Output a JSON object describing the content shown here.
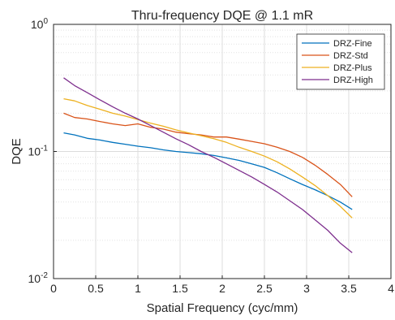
{
  "chart_data": {
    "type": "line",
    "title": "Thru-frequency DQE @ 1.1 mR",
    "xlabel": "Spatial Frequency (cyc/mm)",
    "ylabel": "DQE",
    "xlim": [
      0,
      4
    ],
    "ylim": [
      0.01,
      1
    ],
    "yscale": "log",
    "grid": true,
    "legend_location": "top-right",
    "x_ticks": [
      0,
      0.5,
      1,
      1.5,
      2,
      2.5,
      3,
      3.5,
      4
    ],
    "x_tick_labels": [
      "0",
      "0.5",
      "1",
      "1.5",
      "2",
      "2.5",
      "3",
      "3.5",
      "4"
    ],
    "y_ticks": [
      {
        "value": 0.01,
        "base": "10",
        "exp": "-2"
      },
      {
        "value": 0.1,
        "base": "10",
        "exp": "-1"
      },
      {
        "value": 1,
        "base": "10",
        "exp": "0"
      }
    ],
    "series": [
      {
        "name": "DRZ-Fine",
        "color": "#0072BD",
        "x": [
          0.12,
          0.25,
          0.4,
          0.55,
          0.7,
          0.85,
          1.0,
          1.15,
          1.3,
          1.45,
          1.6,
          1.75,
          1.9,
          2.05,
          2.2,
          2.35,
          2.5,
          2.65,
          2.8,
          2.95,
          3.1,
          3.25,
          3.4,
          3.54
        ],
        "y": [
          0.14,
          0.135,
          0.127,
          0.123,
          0.118,
          0.114,
          0.11,
          0.107,
          0.103,
          0.1,
          0.098,
          0.096,
          0.093,
          0.089,
          0.085,
          0.08,
          0.075,
          0.068,
          0.061,
          0.055,
          0.05,
          0.045,
          0.04,
          0.035
        ]
      },
      {
        "name": "DRZ-Std",
        "color": "#D95319",
        "x": [
          0.12,
          0.25,
          0.4,
          0.55,
          0.7,
          0.85,
          1.0,
          1.15,
          1.3,
          1.45,
          1.6,
          1.75,
          1.9,
          2.05,
          2.2,
          2.35,
          2.5,
          2.65,
          2.8,
          2.95,
          3.1,
          3.25,
          3.4,
          3.54
        ],
        "y": [
          0.2,
          0.185,
          0.18,
          0.172,
          0.165,
          0.16,
          0.165,
          0.155,
          0.15,
          0.142,
          0.138,
          0.135,
          0.13,
          0.13,
          0.125,
          0.12,
          0.115,
          0.108,
          0.1,
          0.09,
          0.078,
          0.066,
          0.055,
          0.044
        ]
      },
      {
        "name": "DRZ-Plus",
        "color": "#EDB120",
        "x": [
          0.12,
          0.25,
          0.4,
          0.55,
          0.7,
          0.85,
          1.0,
          1.15,
          1.3,
          1.45,
          1.6,
          1.75,
          1.9,
          2.05,
          2.2,
          2.35,
          2.5,
          2.65,
          2.8,
          2.95,
          3.1,
          3.25,
          3.4,
          3.54
        ],
        "y": [
          0.26,
          0.25,
          0.23,
          0.215,
          0.2,
          0.19,
          0.178,
          0.167,
          0.158,
          0.148,
          0.14,
          0.133,
          0.126,
          0.118,
          0.108,
          0.1,
          0.092,
          0.083,
          0.073,
          0.063,
          0.054,
          0.045,
          0.037,
          0.03
        ]
      },
      {
        "name": "DRZ-High",
        "color": "#7E2F8E",
        "x": [
          0.12,
          0.25,
          0.4,
          0.55,
          0.7,
          0.85,
          1.0,
          1.15,
          1.3,
          1.45,
          1.6,
          1.75,
          1.9,
          2.05,
          2.2,
          2.35,
          2.5,
          2.65,
          2.8,
          2.95,
          3.1,
          3.25,
          3.4,
          3.54
        ],
        "y": [
          0.38,
          0.33,
          0.29,
          0.255,
          0.225,
          0.2,
          0.18,
          0.16,
          0.142,
          0.126,
          0.113,
          0.1,
          0.09,
          0.08,
          0.071,
          0.063,
          0.055,
          0.048,
          0.041,
          0.035,
          0.029,
          0.024,
          0.019,
          0.016
        ]
      }
    ]
  }
}
